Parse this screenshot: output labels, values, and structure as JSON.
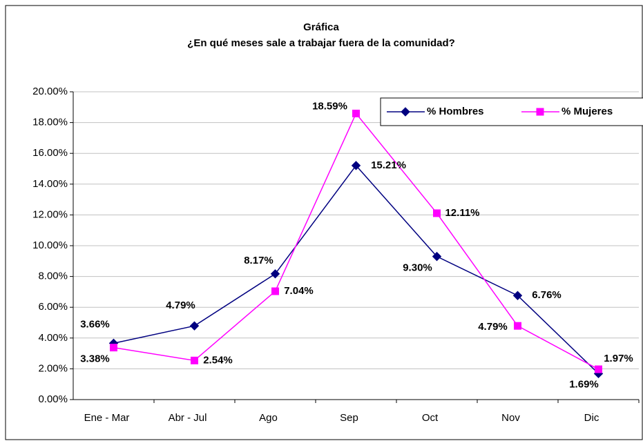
{
  "chart_data": {
    "type": "line",
    "title": "Gráfica",
    "subtitle": "¿En qué meses sale a trabajar fuera de la comunidad?",
    "categories": [
      "Ene - Mar",
      "Abr - Jul",
      "Ago",
      "Sep",
      "Oct",
      "Nov",
      "Dic"
    ],
    "series": [
      {
        "name": "% Hombres",
        "color": "#000080",
        "marker": "diamond",
        "values": [
          3.66,
          4.79,
          8.17,
          15.21,
          9.3,
          6.76,
          1.69
        ],
        "value_labels": [
          "3.66%",
          "4.79%",
          "8.17%",
          "15.21%",
          "9.30%",
          "6.76%",
          "1.69%"
        ]
      },
      {
        "name": "% Mujeres",
        "color": "#ff00ff",
        "marker": "square",
        "values": [
          3.38,
          2.54,
          7.04,
          18.59,
          12.11,
          4.79,
          1.97
        ],
        "value_labels": [
          "3.38%",
          "2.54%",
          "7.04%",
          "18.59%",
          "12.11%",
          "4.79%",
          "1.97%"
        ]
      }
    ],
    "ylim": [
      0,
      20
    ],
    "yticks": [
      {
        "value": 0,
        "label": "0.00%"
      },
      {
        "value": 2,
        "label": "2.00%"
      },
      {
        "value": 4,
        "label": "4.00%"
      },
      {
        "value": 6,
        "label": "6.00%"
      },
      {
        "value": 8,
        "label": "8.00%"
      },
      {
        "value": 10,
        "label": "10.00%"
      },
      {
        "value": 12,
        "label": "12.00%"
      },
      {
        "value": 14,
        "label": "14.00%"
      },
      {
        "value": 16,
        "label": "16.00%"
      },
      {
        "value": 18,
        "label": "18.00%"
      },
      {
        "value": 20,
        "label": "20.00%"
      }
    ],
    "grid": true,
    "legend": "top-right"
  }
}
